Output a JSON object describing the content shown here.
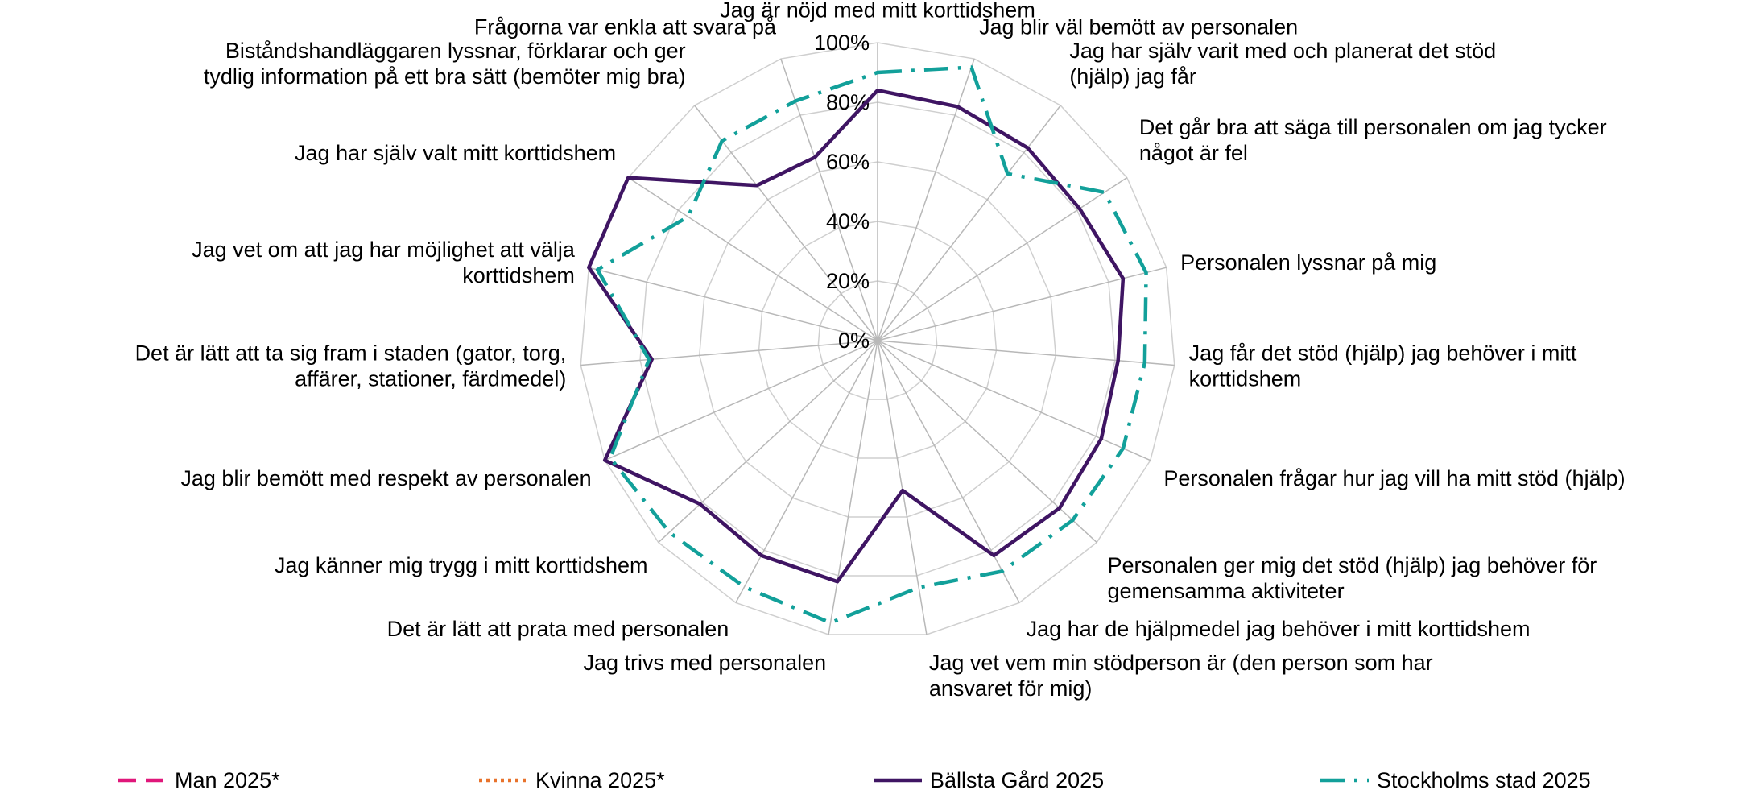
{
  "chart_data": {
    "type": "radar",
    "categories": [
      "Jag är nöjd med mitt korttidshem",
      "Jag blir väl bemött av personalen",
      "Jag har själv varit med och planerat det stöd (hjälp) jag får",
      "Det går bra att säga till personalen om jag tycker något är fel",
      "Personalen lyssnar på mig",
      "Jag får det stöd (hjälp) jag behöver i mitt korttidshem",
      "Personalen frågar hur jag vill ha mitt stöd (hjälp)",
      "Personalen ger mig det stöd (hjälp) jag behöver för gemensamma aktiviteter",
      "Jag har de hjälpmedel jag behöver i mitt korttidshem",
      "Jag vet vem min stödperson är (den person som har ansvaret för mig)",
      "Jag trivs med personalen",
      "Det är lätt att prata med personalen",
      "Jag känner mig trygg i mitt korttidshem",
      "Jag blir bemött med respekt av personalen",
      "Det är lätt att ta sig fram i staden (gator, torg, affärer, stationer, färdmedel)",
      "Jag vet om att jag har möjlighet att välja korttidshem",
      "Jag har själv valt mitt korttidshem",
      "Biståndshandläggaren lyssnar, förklarar och ger tydlig information på ett bra sätt (bemöter mig bra)",
      "Frågorna var enkla att svara på"
    ],
    "series": [
      {
        "name": "Man 2025*",
        "color": "#e0177a",
        "dash": "dashed",
        "values": [
          null,
          null,
          null,
          null,
          null,
          null,
          null,
          null,
          null,
          null,
          null,
          null,
          null,
          null,
          null,
          null,
          null,
          null,
          null
        ]
      },
      {
        "name": "Kvinna 2025*",
        "color": "#e8722b",
        "dash": "dotted",
        "values": [
          null,
          null,
          null,
          null,
          null,
          null,
          null,
          null,
          null,
          null,
          null,
          null,
          null,
          null,
          null,
          null,
          null,
          null,
          null
        ]
      },
      {
        "name": "Bällsta Gård 2025",
        "color": "#3f1563",
        "dash": "solid",
        "values": [
          84,
          83,
          82,
          81,
          85,
          81,
          82,
          83,
          82,
          51,
          82,
          82,
          81,
          100,
          76,
          100,
          100,
          66,
          65
        ]
      },
      {
        "name": "Stockholms stad 2025",
        "color": "#12a09a",
        "dash": "dashdot",
        "values": [
          90,
          97,
          71,
          91,
          93,
          90,
          90,
          89,
          88,
          84,
          96,
          94,
          95,
          98,
          77,
          97,
          76,
          85,
          85
        ]
      }
    ],
    "ylim": [
      0,
      100
    ],
    "yticks": [
      {
        "value": 0,
        "label": "0%"
      },
      {
        "value": 20,
        "label": "20%"
      },
      {
        "value": 40,
        "label": "40%"
      },
      {
        "value": 60,
        "label": "60%"
      },
      {
        "value": 80,
        "label": "80%"
      },
      {
        "value": 100,
        "label": "100%"
      }
    ],
    "grid": true,
    "legend": "bottom"
  }
}
